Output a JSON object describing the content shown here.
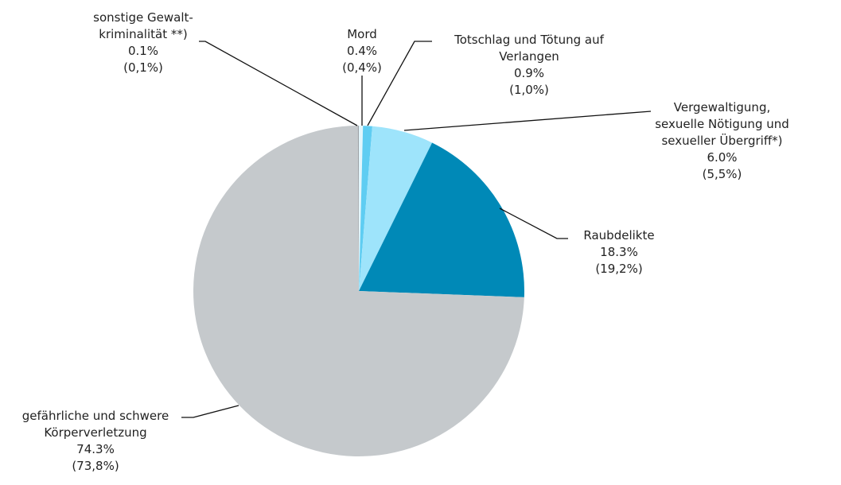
{
  "chart_data": {
    "type": "pie",
    "categories": [
      "Mord",
      "Totschlag und Tötung auf Verlangen",
      "Vergewaltigung, sexuelle Nötigung und sexueller Übergriff*)",
      "Raubdelikte",
      "gefährliche und schwere Körperverletzung",
      "sonstige Gewalt-kriminalität **)"
    ],
    "values": [
      0.4,
      0.9,
      6.0,
      18.3,
      74.3,
      0.1
    ],
    "value_labels": [
      "0.4%",
      "0.9%",
      "6.0%",
      "18.3%",
      "74.3%",
      "0.1%"
    ],
    "previous_year_labels": [
      "(0,4%)",
      "(1,0%)",
      "(5,5%)",
      "(19,2%)",
      "(73,8%)",
      "(0,1%)"
    ],
    "colors": [
      "#e3f6fc",
      "#5fcdf2",
      "#9ee4fb",
      "#0089b7",
      "#c5c9cc",
      "#9ea2a6"
    ]
  }
}
